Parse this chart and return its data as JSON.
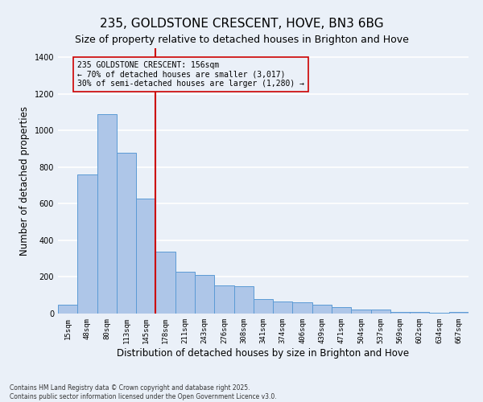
{
  "title1": "235, GOLDSTONE CRESCENT, HOVE, BN3 6BG",
  "title2": "Size of property relative to detached houses in Brighton and Hove",
  "xlabel": "Distribution of detached houses by size in Brighton and Hove",
  "ylabel": "Number of detached properties",
  "categories": [
    "15sqm",
    "48sqm",
    "80sqm",
    "113sqm",
    "145sqm",
    "178sqm",
    "211sqm",
    "243sqm",
    "276sqm",
    "308sqm",
    "341sqm",
    "374sqm",
    "406sqm",
    "439sqm",
    "471sqm",
    "504sqm",
    "537sqm",
    "569sqm",
    "602sqm",
    "634sqm",
    "667sqm"
  ],
  "values": [
    50,
    760,
    1090,
    880,
    630,
    340,
    230,
    210,
    155,
    150,
    80,
    65,
    60,
    50,
    35,
    20,
    20,
    10,
    10,
    5,
    10
  ],
  "bar_color": "#aec6e8",
  "bar_edge_color": "#5b9bd5",
  "vline_x_index": 4,
  "vline_color": "#cc0000",
  "annotation_line1": "235 GOLDSTONE CRESCENT: 156sqm",
  "annotation_line2": "← 70% of detached houses are smaller (3,017)",
  "annotation_line3": "30% of semi-detached houses are larger (1,280) →",
  "annotation_box_color": "#cc0000",
  "ylim": [
    0,
    1450
  ],
  "yticks": [
    0,
    200,
    400,
    600,
    800,
    1000,
    1200,
    1400
  ],
  "footer1": "Contains HM Land Registry data © Crown copyright and database right 2025.",
  "footer2": "Contains public sector information licensed under the Open Government Licence v3.0.",
  "bg_color": "#eaf0f8",
  "grid_color": "#ffffff",
  "title1_fontsize": 11,
  "title2_fontsize": 9,
  "tick_fontsize": 6.5,
  "label_fontsize": 8.5,
  "annotation_fontsize": 7,
  "footer_fontsize": 5.5
}
